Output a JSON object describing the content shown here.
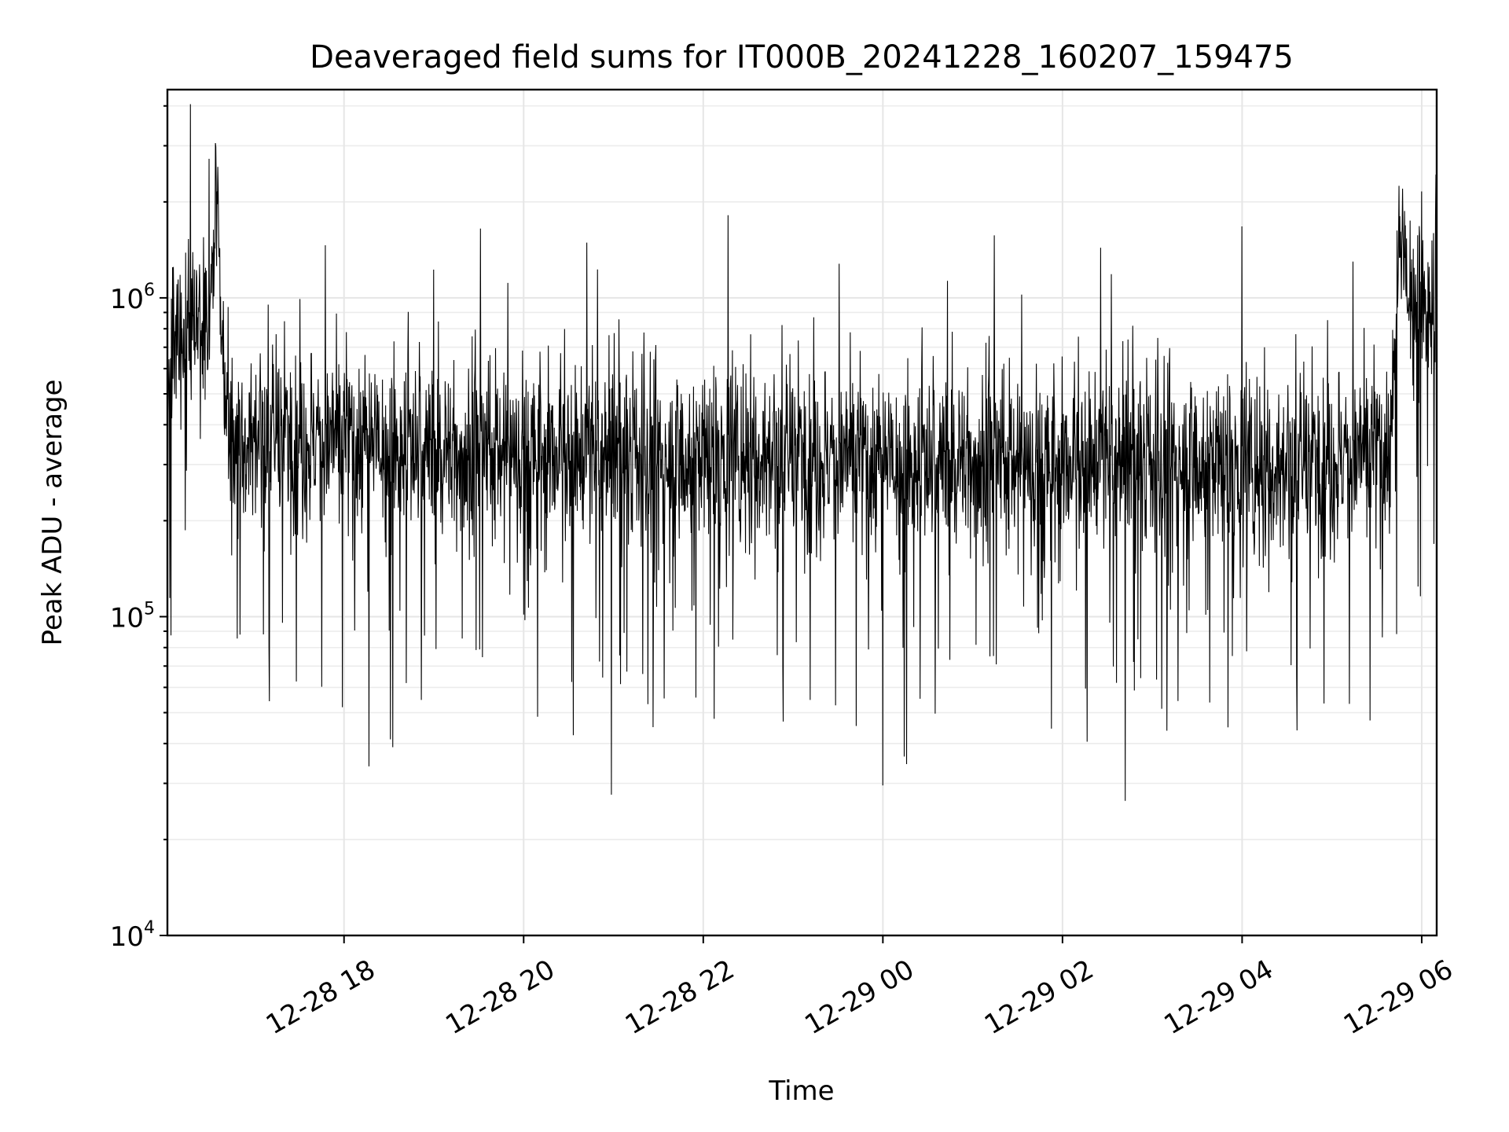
{
  "chart_data": {
    "type": "line",
    "title": "Deaveraged field sums for IT000B_20241228_160207_159475",
    "xlabel": "Time",
    "ylabel": "Peak ADU - average",
    "yscale": "log",
    "ylim": [
      10000,
      4500000
    ],
    "xlim": [
      "2024-12-28 16:02",
      "2024-12-29 06:10"
    ],
    "grid": true,
    "x_ticks": [
      {
        "value": "2024-12-28 18:00",
        "label": "12-28 18"
      },
      {
        "value": "2024-12-28 20:00",
        "label": "12-28 20"
      },
      {
        "value": "2024-12-28 22:00",
        "label": "12-28 22"
      },
      {
        "value": "2024-12-29 00:00",
        "label": "12-29 00"
      },
      {
        "value": "2024-12-29 02:00",
        "label": "12-29 02"
      },
      {
        "value": "2024-12-29 04:00",
        "label": "12-29 04"
      },
      {
        "value": "2024-12-29 06:00",
        "label": "12-29 06"
      }
    ],
    "y_ticks": [
      {
        "value": 10000,
        "base": "10",
        "exp": "4"
      },
      {
        "value": 100000,
        "base": "10",
        "exp": "5"
      },
      {
        "value": 1000000,
        "base": "10",
        "exp": "6"
      }
    ],
    "series": [
      {
        "color": "#000000",
        "x": [
          "2024-12-28 16:02",
          "2024-12-28 16:30",
          "2024-12-28 16:35",
          "2024-12-28 16:40",
          "2024-12-28 16:45",
          "2024-12-28 17:00",
          "2024-12-28 17:30",
          "2024-12-28 18:00",
          "2024-12-28 18:30",
          "2024-12-28 19:00",
          "2024-12-28 19:30",
          "2024-12-28 20:00",
          "2024-12-28 20:30",
          "2024-12-28 21:00",
          "2024-12-28 21:30",
          "2024-12-28 22:00",
          "2024-12-28 22:30",
          "2024-12-28 23:00",
          "2024-12-28 23:30",
          "2024-12-29 00:00",
          "2024-12-29 00:30",
          "2024-12-29 01:00",
          "2024-12-29 01:30",
          "2024-12-29 02:00",
          "2024-12-29 02:30",
          "2024-12-29 03:00",
          "2024-12-29 03:30",
          "2024-12-29 04:00",
          "2024-12-29 04:30",
          "2024-12-29 05:00",
          "2024-12-29 05:30",
          "2024-12-29 05:40",
          "2024-12-29 05:45",
          "2024-12-29 05:50",
          "2024-12-29 06:00",
          "2024-12-29 06:10"
        ],
        "values": [
          600000,
          900000,
          2500000,
          400000,
          350000,
          380000,
          360000,
          350000,
          340000,
          330000,
          320000,
          330000,
          320000,
          320000,
          310000,
          320000,
          330000,
          320000,
          310000,
          300000,
          300000,
          310000,
          300000,
          300000,
          310000,
          300000,
          310000,
          300000,
          300000,
          310000,
          320000,
          350000,
          1500000,
          1100000,
          1000000,
          900000
        ]
      }
    ]
  }
}
